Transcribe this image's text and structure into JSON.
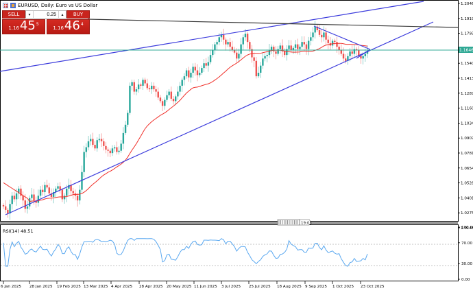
{
  "window": {
    "title": "EURUSD, Daily:  Euro vs US Dollar",
    "symbol": "EURUSD",
    "timeframe": "Daily",
    "description": "Euro vs US Dollar"
  },
  "trade_panel": {
    "sell_label": "SELL",
    "buy_label": "BUY",
    "lot_value": "0.25",
    "lot_down": "▾",
    "lot_up": "▴",
    "sell_price": {
      "prefix": "1.16",
      "big": "45",
      "sup": "5"
    },
    "buy_price": {
      "prefix": "1.16",
      "big": "46",
      "sup": "4"
    }
  },
  "price_axis": {
    "labels": [
      "1.20460",
      "1.19195",
      "1.17930",
      "1.16665",
      "1.15400",
      "1.14135",
      "1.12870",
      "1.11605",
      "1.10340",
      "1.09075",
      "1.07810",
      "1.06545",
      "1.05280",
      "1.04015",
      "1.02750",
      "1.01485"
    ],
    "current_price": "1.16460"
  },
  "rsi": {
    "label": "RSI(14) 48.51",
    "levels": [
      "100.00",
      "70.00",
      "30.00",
      "0.00"
    ]
  },
  "time_axis": {
    "labels": [
      "6 Jan 2025",
      "28 Jan 2025",
      "19 Feb 2025",
      "13 Mar 2025",
      "4 Apr 2025",
      "28 Apr 2025",
      "20 May 2025",
      "11 Jun 2025",
      "3 Jul 2025",
      "25 Jul 2025",
      "18 Aug 2025",
      "9 Sep 2025",
      "1 Oct 2025",
      "23 Oct 2025"
    ]
  },
  "timer": {
    "label": "19:05"
  },
  "colors": {
    "bull": "#26a69a",
    "bear": "#ef5350",
    "ma": "#f0302a",
    "trendline": "#3b3bdc",
    "resistance": "#3a3a3a",
    "current_line": "#2fa894",
    "rsi_line": "#5aa8f0",
    "axis": "#000000"
  },
  "chart_data": {
    "type": "candlestick",
    "title": "EURUSD, Daily: Euro vs US Dollar",
    "xlabel": "",
    "ylabel": "Price",
    "ylim": [
      1.0085,
      1.2085
    ],
    "grid": false,
    "x_ticks": [
      "6 Jan 2025",
      "28 Jan 2025",
      "19 Feb 2025",
      "13 Mar 2025",
      "4 Apr 2025",
      "28 Apr 2025",
      "20 May 2025",
      "11 Jun 2025",
      "3 Jul 2025",
      "25 Jul 2025",
      "18 Aug 2025",
      "9 Sep 2025",
      "1 Oct 2025",
      "23 Oct 2025"
    ],
    "close_path": [
      1.033,
      1.03,
      1.027,
      1.035,
      1.042,
      1.039,
      1.044,
      1.048,
      1.042,
      1.038,
      1.031,
      1.033,
      1.04,
      1.043,
      1.038,
      1.036,
      1.042,
      1.047,
      1.045,
      1.051,
      1.049,
      1.044,
      1.041,
      1.045,
      1.048,
      1.05,
      1.047,
      1.039,
      1.042,
      1.048,
      1.051,
      1.046,
      1.044,
      1.042,
      1.038,
      1.047,
      1.062,
      1.079,
      1.083,
      1.088,
      1.09,
      1.085,
      1.082,
      1.089,
      1.09,
      1.088,
      1.084,
      1.081,
      1.08,
      1.078,
      1.082,
      1.083,
      1.079,
      1.08,
      1.086,
      1.095,
      1.102,
      1.112,
      1.135,
      1.138,
      1.13,
      1.132,
      1.136,
      1.135,
      1.14,
      1.137,
      1.133,
      1.132,
      1.135,
      1.132,
      1.13,
      1.125,
      1.122,
      1.118,
      1.123,
      1.127,
      1.13,
      1.124,
      1.122,
      1.126,
      1.13,
      1.135,
      1.14,
      1.143,
      1.148,
      1.142,
      1.146,
      1.151,
      1.148,
      1.144,
      1.146,
      1.15,
      1.154,
      1.152,
      1.155,
      1.161,
      1.165,
      1.17,
      1.172,
      1.176,
      1.178,
      1.174,
      1.17,
      1.172,
      1.168,
      1.165,
      1.163,
      1.158,
      1.162,
      1.17,
      1.176,
      1.179,
      1.172,
      1.166,
      1.159,
      1.156,
      1.143,
      1.146,
      1.152,
      1.158,
      1.16,
      1.161,
      1.165,
      1.168,
      1.164,
      1.162,
      1.166,
      1.169,
      1.164,
      1.161,
      1.166,
      1.169,
      1.165,
      1.167,
      1.17,
      1.166,
      1.168,
      1.172,
      1.17,
      1.166,
      1.173,
      1.176,
      1.18,
      1.185,
      1.182,
      1.178,
      1.176,
      1.18,
      1.174,
      1.171,
      1.169,
      1.173,
      1.172,
      1.168,
      1.165,
      1.162,
      1.158,
      1.156,
      1.16,
      1.164,
      1.162,
      1.166,
      1.165,
      1.16,
      1.158,
      1.16,
      1.162,
      1.1646
    ],
    "series": [
      {
        "name": "EURUSD Daily",
        "type": "candlestick",
        "last_close": 1.1646,
        "bid": 1.16455,
        "ask": 1.16464
      },
      {
        "name": "Moving Average",
        "type": "line",
        "color": "#f0302a"
      },
      {
        "name": "RSI(14)",
        "type": "line",
        "last": 48.51,
        "levels": [
          30,
          70
        ],
        "ylim": [
          0,
          100
        ]
      }
    ],
    "annotations": [
      {
        "type": "trendline",
        "desc": "Long-term ascending support from Jan 2025 low",
        "from_price": 1.015,
        "to_price": 1.188
      },
      {
        "type": "trendline",
        "desc": "Ascending channel top",
        "from_price": 1.143,
        "to_price": 1.2085
      },
      {
        "type": "trendline",
        "desc": "Descending resistance from Sep high",
        "from_price": 1.189,
        "to_price": 1.164
      },
      {
        "type": "hline",
        "desc": "Horizontal resistance (dark)",
        "price": 1.188
      },
      {
        "type": "hline",
        "desc": "Current price line",
        "price": 1.1646
      }
    ]
  }
}
